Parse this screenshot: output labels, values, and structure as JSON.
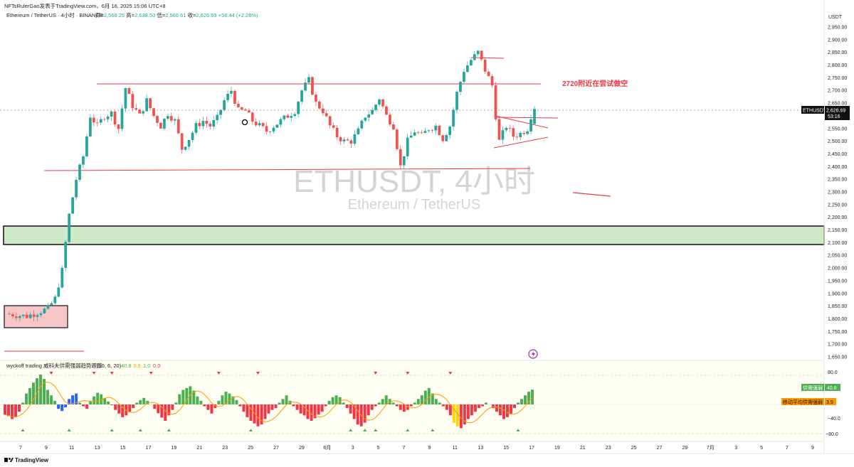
{
  "header": {
    "published": "NFTsRulerGao发表于TradingView.com，6月 16, 2025 15:06 UTC+8",
    "symbol_line": "Ethereum / TetherUS · 4小时 · BINANCE",
    "ohlc": [
      {
        "label": "开",
        "value": "2,568.25"
      },
      {
        "label": "高",
        "value": "2,638.50"
      },
      {
        "label": "低",
        "value": "2,566.61"
      },
      {
        "label": "收",
        "value": "2,626.69"
      }
    ],
    "change": "+58.44 (+2.28%)"
  },
  "watermark": {
    "title": "ETHUSDT, 4小时",
    "subtitle": "Ethereum / TetherUS"
  },
  "annotation": {
    "text": "2720附近在尝试做空"
  },
  "price_axis": {
    "currency": "USDT",
    "ticks": [
      "2,950.00",
      "2,900.00",
      "2,850.00",
      "2,800.00",
      "2,750.00",
      "2,700.00",
      "2,650.00",
      "2,600.00",
      "2,550.00",
      "2,500.00",
      "2,450.00",
      "2,400.00",
      "2,350.00",
      "2,300.00",
      "2,250.00",
      "2,200.00",
      "2,150.00",
      "2,100.00",
      "2,050.00",
      "2,000.00",
      "1,950.00",
      "1,900.00",
      "1,850.00",
      "1,800.00",
      "1,750.00",
      "1,700.00",
      "1,650.00"
    ],
    "current_label": "ETHUSDT",
    "current_price": "2,626.69",
    "countdown": "53:16"
  },
  "time_axis": {
    "labels": [
      "7",
      "9",
      "11",
      "13",
      "15",
      "17",
      "19",
      "21",
      "23",
      "25",
      "27",
      "29",
      "6月",
      "3",
      "5",
      "7",
      "9",
      "11",
      "13",
      "15",
      "17",
      "19",
      "21",
      "23",
      "25",
      "27",
      "29",
      "7月",
      "3",
      "5",
      "7",
      "9"
    ]
  },
  "indicator": {
    "name": "wyckoff trading 威科夫供需强弱趋势跟踪",
    "params": "(10, 6, 20)",
    "values": [
      {
        "value": "40.8",
        "color": "#4caf50"
      },
      {
        "value": "3.9",
        "color": "#ff9800"
      },
      {
        "value": "1.0",
        "color": "#4caf50"
      },
      {
        "value": "0.0",
        "color": "#f23645"
      }
    ],
    "axis_ticks": [
      "80.0",
      "40.0",
      "−40.0",
      "−80.0"
    ],
    "tags": [
      {
        "label": "供需强弱",
        "value": "40.8",
        "color": "#4caf50"
      },
      {
        "label": "移动平均供需强弱",
        "value": "3.9",
        "color": "#ff9800"
      }
    ]
  },
  "footer": {
    "brand": "TradingView"
  },
  "colors": {
    "up": "#26a69a",
    "down": "#ef5350",
    "zone_green": "#cfe8c7",
    "zone_red": "#f7c6c6",
    "line_red": "#f23645"
  },
  "chart_data": {
    "type": "candlestick",
    "title": "ETHUSDT, 4小时",
    "subtitle": "Ethereum / TetherUS",
    "ylim": [
      1640,
      2985
    ],
    "y_ticks": [
      1650,
      1700,
      1750,
      1800,
      1850,
      1900,
      1950,
      2000,
      2050,
      2100,
      2150,
      2200,
      2250,
      2300,
      2350,
      2400,
      2450,
      2500,
      2550,
      2600,
      2650,
      2700,
      2750,
      2800,
      2850,
      2900,
      2950
    ],
    "current": {
      "open": 2568.25,
      "high": 2638.5,
      "low": 2566.61,
      "close": 2626.69,
      "change": 58.44,
      "change_pct": 2.28
    },
    "price_path": [
      [
        0,
        1820
      ],
      [
        6,
        1810
      ],
      [
        12,
        1840
      ],
      [
        14,
        1880
      ],
      [
        16,
        1990
      ],
      [
        18,
        2210
      ],
      [
        20,
        2350
      ],
      [
        22,
        2440
      ],
      [
        24,
        2600
      ],
      [
        26,
        2560
      ],
      [
        28,
        2600
      ],
      [
        30,
        2610
      ],
      [
        32,
        2550
      ],
      [
        34,
        2710
      ],
      [
        36,
        2640
      ],
      [
        38,
        2600
      ],
      [
        40,
        2660
      ],
      [
        42,
        2600
      ],
      [
        44,
        2560
      ],
      [
        46,
        2610
      ],
      [
        48,
        2580
      ],
      [
        50,
        2470
      ],
      [
        52,
        2510
      ],
      [
        54,
        2560
      ],
      [
        56,
        2580
      ],
      [
        58,
        2560
      ],
      [
        60,
        2590
      ],
      [
        62,
        2660
      ],
      [
        64,
        2700
      ],
      [
        66,
        2620
      ],
      [
        68,
        2620
      ],
      [
        70,
        2580
      ],
      [
        72,
        2560
      ],
      [
        74,
        2540
      ],
      [
        76,
        2560
      ],
      [
        78,
        2580
      ],
      [
        80,
        2600
      ],
      [
        82,
        2620
      ],
      [
        84,
        2700
      ],
      [
        86,
        2740
      ],
      [
        88,
        2650
      ],
      [
        90,
        2620
      ],
      [
        92,
        2560
      ],
      [
        94,
        2520
      ],
      [
        96,
        2500
      ],
      [
        98,
        2500
      ],
      [
        100,
        2540
      ],
      [
        102,
        2600
      ],
      [
        104,
        2620
      ],
      [
        106,
        2670
      ],
      [
        108,
        2600
      ],
      [
        110,
        2560
      ],
      [
        111,
        2480
      ],
      [
        112,
        2400
      ],
      [
        114,
        2500
      ],
      [
        116,
        2540
      ],
      [
        118,
        2520
      ],
      [
        120,
        2550
      ],
      [
        122,
        2560
      ],
      [
        124,
        2510
      ],
      [
        126,
        2560
      ],
      [
        128,
        2690
      ],
      [
        130,
        2780
      ],
      [
        132,
        2820
      ],
      [
        134,
        2850
      ],
      [
        136,
        2780
      ],
      [
        138,
        2720
      ],
      [
        139,
        2600
      ],
      [
        140,
        2500
      ],
      [
        142,
        2560
      ],
      [
        144,
        2520
      ],
      [
        146,
        2530
      ],
      [
        148,
        2550
      ],
      [
        149,
        2600
      ],
      [
        150,
        2627
      ]
    ],
    "zones": [
      {
        "kind": "supply-demand",
        "from_price": 2094,
        "to_price": 2165,
        "color": "green"
      },
      {
        "kind": "box",
        "from_price": 1770,
        "to_price": 1855,
        "color": "red"
      }
    ],
    "lines": [
      {
        "kind": "resistance",
        "price": 2730
      },
      {
        "kind": "support",
        "price": 2395
      },
      {
        "kind": "high",
        "price": 2830
      },
      {
        "kind": "breakout",
        "price": 2600
      }
    ],
    "indicator_series": {
      "name": "wyckoff trading 威科夫供需强弱趋势跟踪",
      "ylim": [
        -100,
        100
      ],
      "values": [
        -28,
        -32,
        -40,
        -35,
        -20,
        5,
        30,
        45,
        60,
        72,
        82,
        70,
        40,
        25,
        10,
        -12,
        -18,
        -8,
        15,
        25,
        30,
        5,
        -5,
        -12,
        10,
        22,
        32,
        28,
        18,
        8,
        -2,
        -15,
        -25,
        -35,
        -30,
        -20,
        -10,
        5,
        12,
        18,
        10,
        0,
        -12,
        -24,
        -36,
        -45,
        -30,
        -15,
        5,
        28,
        40,
        45,
        50,
        38,
        22,
        10,
        -5,
        -15,
        -25,
        -10,
        10,
        25,
        35,
        30,
        22,
        12,
        -5,
        -20,
        -35,
        -45,
        -52,
        -60,
        -55,
        -40,
        -25,
        -15,
        -10,
        5,
        15,
        25,
        10,
        -5,
        -15,
        -25,
        -30,
        -40,
        -45,
        -38,
        -28,
        -20,
        -5,
        10,
        20,
        25,
        20,
        5,
        -10,
        -25,
        -40,
        -55,
        -60,
        -50,
        -30,
        -15,
        -5,
        5,
        15,
        25,
        15,
        5,
        -5,
        -15,
        -20,
        -15,
        -5,
        5,
        15,
        25,
        38,
        45,
        30,
        15,
        5,
        -5,
        -15,
        -30,
        -50,
        -60,
        -65,
        -55,
        -40,
        -30,
        -20,
        -10,
        -5,
        5,
        0,
        -10,
        -20,
        -30,
        -40,
        -35,
        -25,
        -10,
        5,
        15,
        25,
        35,
        40.8
      ],
      "last": 40.8,
      "ma_last": 3.9
    }
  }
}
